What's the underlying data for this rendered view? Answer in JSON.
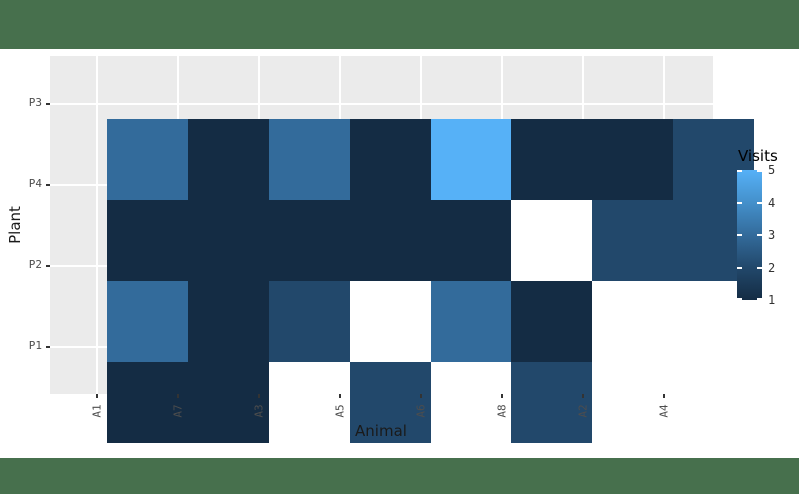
{
  "slide": {
    "background": "#FFFFFF",
    "top_bar_color": "#47704D",
    "bottom_bar_color": "#47704D"
  },
  "chart_data": {
    "type": "heatmap",
    "title": "",
    "xlabel": "Animal",
    "ylabel": "Plant",
    "x_categories": [
      "A1",
      "A7",
      "A3",
      "A5",
      "A6",
      "A8",
      "A2",
      "A4"
    ],
    "y_categories": [
      "P3",
      "P4",
      "P2",
      "P1"
    ],
    "values": [
      [
        3,
        1,
        3,
        1,
        5,
        1,
        1,
        2
      ],
      [
        1,
        1,
        1,
        1,
        1,
        null,
        2,
        2
      ],
      [
        3,
        1,
        2,
        null,
        3,
        1,
        null,
        null
      ],
      [
        1,
        1,
        null,
        2,
        null,
        2,
        null,
        null
      ]
    ],
    "legend": {
      "title": "Visits",
      "breaks": [
        "5",
        "4",
        "3",
        "2",
        "1"
      ],
      "limits": [
        1,
        5
      ],
      "position": "right",
      "gradient_low": "#142C44",
      "gradient_high": "#56B1F7"
    },
    "value_colors": {
      "1": "#142C44",
      "2": "#22486B",
      "3": "#336B9B",
      "4": "#4490CB",
      "5": "#56B1F7"
    },
    "na_color": "#FFFFFF",
    "panel_background": "#EBEBEB",
    "gridline_color": "#FFFFFF",
    "grid": "major gridlines at category centers, visible only in panel expansion strips",
    "tick_color": "#333333",
    "tick_label_color": "#4D4D4D",
    "axis_title_color": "#1A1A1A",
    "legend_label_color": "#333333"
  }
}
